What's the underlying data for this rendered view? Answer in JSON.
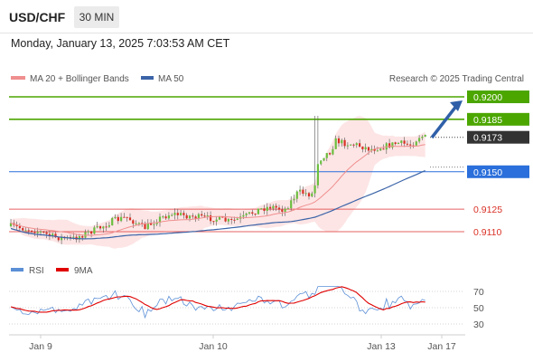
{
  "header": {
    "pair": "USD/CHF",
    "timeframe": "30 MIN",
    "datetime": "Monday, January 13, 2025 7:03:53 AM CET"
  },
  "legend": {
    "ma20": {
      "label": "MA 20 + Bollinger Bands",
      "color": "#f08f8f"
    },
    "ma50": {
      "label": "MA 50",
      "color": "#3b64a8"
    },
    "credit": "Research © 2025 Trading Central"
  },
  "rsi_legend": {
    "rsi": {
      "label": "RSI",
      "color": "#5b8fd6"
    },
    "ma9": {
      "label": "9MA",
      "color": "#e00000"
    }
  },
  "chart_data": [
    {
      "type": "candlestick",
      "title": "USD/CHF",
      "x_ticks": [
        "Jan 9",
        "Jan 10",
        "Jan 13",
        "Jan 17"
      ],
      "ylim": [
        0.909,
        0.921
      ],
      "levels": [
        {
          "value": 0.92,
          "label": "0.9200",
          "color": "#4ca600",
          "kind": "resistance"
        },
        {
          "value": 0.9185,
          "label": "0.9185",
          "color": "#4ca600",
          "kind": "resistance"
        },
        {
          "value": 0.9173,
          "label": "0.9173",
          "color": "#333333",
          "kind": "last-price"
        },
        {
          "value": 0.915,
          "label": "0.9150",
          "color": "#2a6fdb",
          "kind": "pivot"
        },
        {
          "value": 0.9125,
          "label": "0.9125",
          "color": "#e66060",
          "kind": "support"
        },
        {
          "value": 0.911,
          "label": "0.9110",
          "color": "#e66060",
          "kind": "support"
        }
      ],
      "series": [
        {
          "name": "MA 20",
          "color": "#f08f8f"
        },
        {
          "name": "MA 50",
          "color": "#3b64a8"
        }
      ],
      "bias": "bullish"
    },
    {
      "type": "line",
      "title": "RSI",
      "y_ticks": [
        70,
        50,
        30
      ],
      "ylim": [
        20,
        80
      ],
      "series": [
        {
          "name": "RSI",
          "color": "#5b8fd6"
        },
        {
          "name": "9MA",
          "color": "#e00000"
        }
      ]
    }
  ]
}
